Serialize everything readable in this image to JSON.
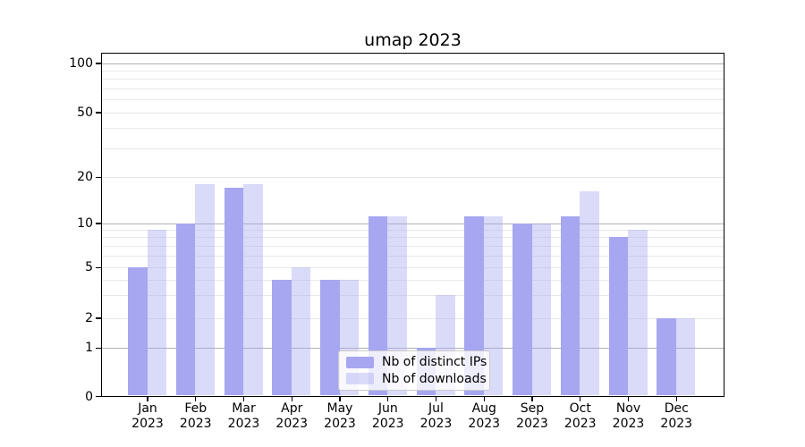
{
  "title": "umap 2023",
  "colors": {
    "bar_ips": "#a6a6f1",
    "bar_downloads": "rgba(166,166,241,0.42)",
    "grid_major": "#b0b0b0",
    "grid_minor": "#e8e8e8",
    "spine": "#000000",
    "legend_border": "#cccccc"
  },
  "chart_data": {
    "type": "bar",
    "title": "umap 2023",
    "categories": [
      "Jan 2023",
      "Feb 2023",
      "Mar 2023",
      "Apr 2023",
      "May 2023",
      "Jun 2023",
      "Jul 2023",
      "Aug 2023",
      "Sep 2023",
      "Oct 2023",
      "Nov 2023",
      "Dec 2023"
    ],
    "series": [
      {
        "name": "Nb of distinct IPs",
        "color": "#a6a6f1",
        "values": [
          5,
          10,
          17,
          4,
          4,
          11,
          1,
          11,
          10,
          11,
          8,
          2
        ]
      },
      {
        "name": "Nb of downloads",
        "color": "rgba(166,166,241,0.42)",
        "values": [
          9,
          18,
          18,
          5,
          4,
          11,
          3,
          11,
          10,
          16,
          9,
          2
        ]
      }
    ],
    "yscale": "symlog",
    "ylim": [
      0,
      120
    ],
    "y_tick_labels": [
      "0",
      "1",
      "2",
      "5",
      "10",
      "20",
      "50",
      "100"
    ],
    "y_major_gridlines": [
      1,
      10,
      100
    ],
    "y_minor_gridlines": [
      2,
      3,
      4,
      5,
      6,
      7,
      8,
      9,
      20,
      30,
      40,
      50,
      60,
      70,
      80,
      90
    ],
    "grid": true,
    "legend_position": "lower center"
  }
}
